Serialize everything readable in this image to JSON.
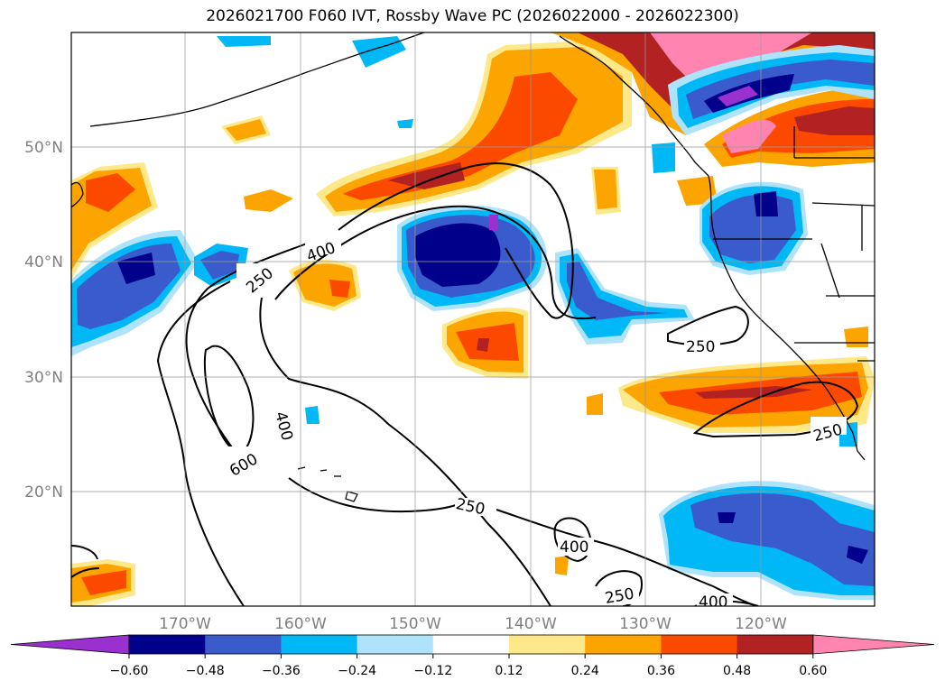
{
  "title": "2026021700 F060 IVT, Rossby Wave PC (2026022000 - 2026022300)",
  "map": {
    "lon_labels": [
      "170°W",
      "160°W",
      "150°W",
      "140°W",
      "130°W",
      "120°W"
    ],
    "lat_labels": [
      "50°N",
      "40°N",
      "30°N",
      "20°N"
    ],
    "contour_labels": [
      "250",
      "400",
      "250",
      "400",
      "600",
      "250",
      "250",
      "400",
      "250",
      "400"
    ]
  },
  "colorbar": {
    "tick_labels": [
      "−0.60",
      "−0.48",
      "−0.36",
      "−0.24",
      "−0.12",
      "0.12",
      "0.24",
      "0.36",
      "0.48",
      "0.60"
    ],
    "colors": [
      "#9b30d0",
      "#00008b",
      "#3a5bcc",
      "#00b8f5",
      "#aee3fb",
      "#ffffff",
      "#fde88a",
      "#fca400",
      "#fb4a00",
      "#b22222",
      "#ff85b0"
    ]
  }
}
